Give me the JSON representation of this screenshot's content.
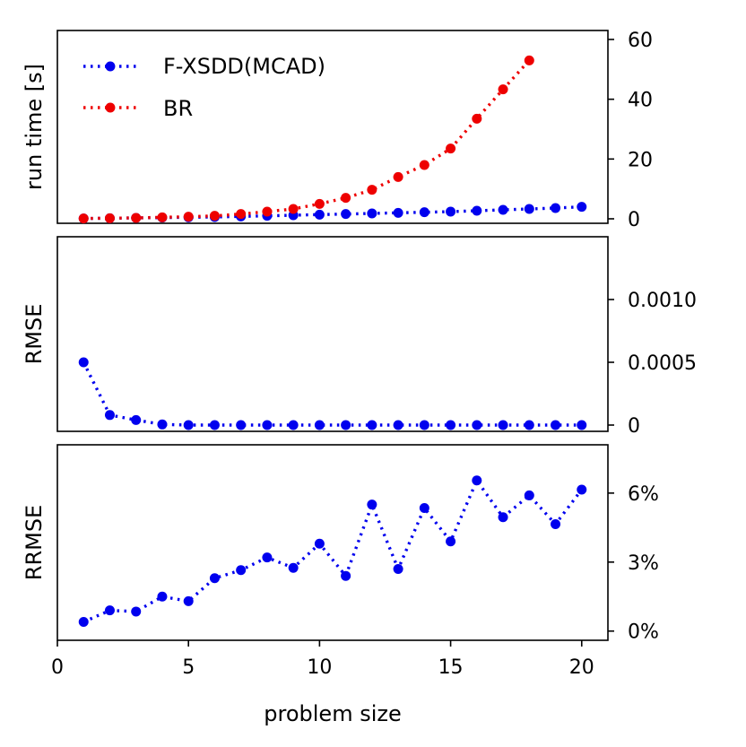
{
  "chart_data": {
    "type": "line",
    "x_axis": {
      "label": "problem size",
      "range": [
        0,
        21
      ],
      "ticks": [
        0,
        5,
        10,
        15,
        20
      ],
      "tick_labels": [
        "0",
        "5",
        "10",
        "15",
        "20"
      ]
    },
    "panels": [
      {
        "id": "runtime",
        "ylabel": "run time [s]",
        "y_axis_side": "right",
        "ylim": [
          -1.5,
          63
        ],
        "yticks": [
          0,
          20,
          40,
          60
        ],
        "ytick_labels": [
          "0",
          "20",
          "40",
          "60"
        ],
        "legend": {
          "placement": "top-left",
          "entries": [
            {
              "name": "F-XSDD(MCAD)",
              "color": "#0000ee"
            },
            {
              "name": "BR",
              "color": "#ee0000"
            }
          ]
        },
        "series": [
          {
            "name": "F-XSDD(MCAD)",
            "color": "#0000ee",
            "x": [
              1,
              2,
              3,
              4,
              5,
              6,
              7,
              8,
              9,
              10,
              11,
              12,
              13,
              14,
              15,
              16,
              17,
              18,
              19,
              20
            ],
            "y": [
              0.1,
              0.2,
              0.3,
              0.4,
              0.5,
              0.6,
              0.8,
              1.0,
              1.2,
              1.4,
              1.6,
              1.8,
              2.0,
              2.2,
              2.4,
              2.7,
              3.0,
              3.3,
              3.6,
              4.0
            ]
          },
          {
            "name": "BR",
            "color": "#ee0000",
            "x": [
              1,
              2,
              3,
              4,
              5,
              6,
              7,
              8,
              9,
              10,
              11,
              12,
              13,
              14,
              15,
              16,
              17,
              18
            ],
            "y": [
              0.1,
              0.2,
              0.3,
              0.5,
              0.7,
              1.0,
              1.6,
              2.4,
              3.3,
              5.0,
              7.0,
              9.7,
              14.0,
              18.0,
              23.5,
              33.5,
              43.3,
              53.0
            ]
          }
        ]
      },
      {
        "id": "rmse",
        "ylabel": "RMSE",
        "y_axis_side": "right",
        "ylim": [
          -5e-05,
          0.0015
        ],
        "yticks": [
          0,
          0.0005,
          0.001
        ],
        "ytick_labels": [
          "0",
          "0.0005",
          "0.0010"
        ],
        "series": [
          {
            "name": "F-XSDD(MCAD)",
            "color": "#0000ee",
            "x": [
              1,
              2,
              3,
              4,
              5,
              6,
              7,
              8,
              9,
              10,
              11,
              12,
              13,
              14,
              15,
              16,
              17,
              18,
              19,
              20
            ],
            "y": [
              0.0005,
              8e-05,
              4e-05,
              5e-06,
              0,
              0,
              0,
              0,
              0,
              0,
              0,
              0,
              0,
              0,
              0,
              0,
              0,
              0,
              0,
              0
            ]
          }
        ]
      },
      {
        "id": "rrmse",
        "ylabel": "RRMSE",
        "y_axis_side": "right",
        "ylim": [
          -0.004,
          0.081
        ],
        "yticks": [
          0,
          0.03,
          0.06
        ],
        "ytick_labels": [
          "0%",
          "3%",
          "6%"
        ],
        "series": [
          {
            "name": "F-XSDD(MCAD)",
            "color": "#0000ee",
            "x": [
              1,
              2,
              3,
              4,
              5,
              6,
              7,
              8,
              9,
              10,
              11,
              12,
              13,
              14,
              15,
              16,
              17,
              18,
              19,
              20
            ],
            "y": [
              0.004,
              0.009,
              0.0085,
              0.015,
              0.013,
              0.023,
              0.0265,
              0.032,
              0.0275,
              0.038,
              0.024,
              0.055,
              0.027,
              0.0535,
              0.039,
              0.0655,
              0.0495,
              0.059,
              0.0465,
              0.0615
            ]
          }
        ]
      }
    ]
  }
}
